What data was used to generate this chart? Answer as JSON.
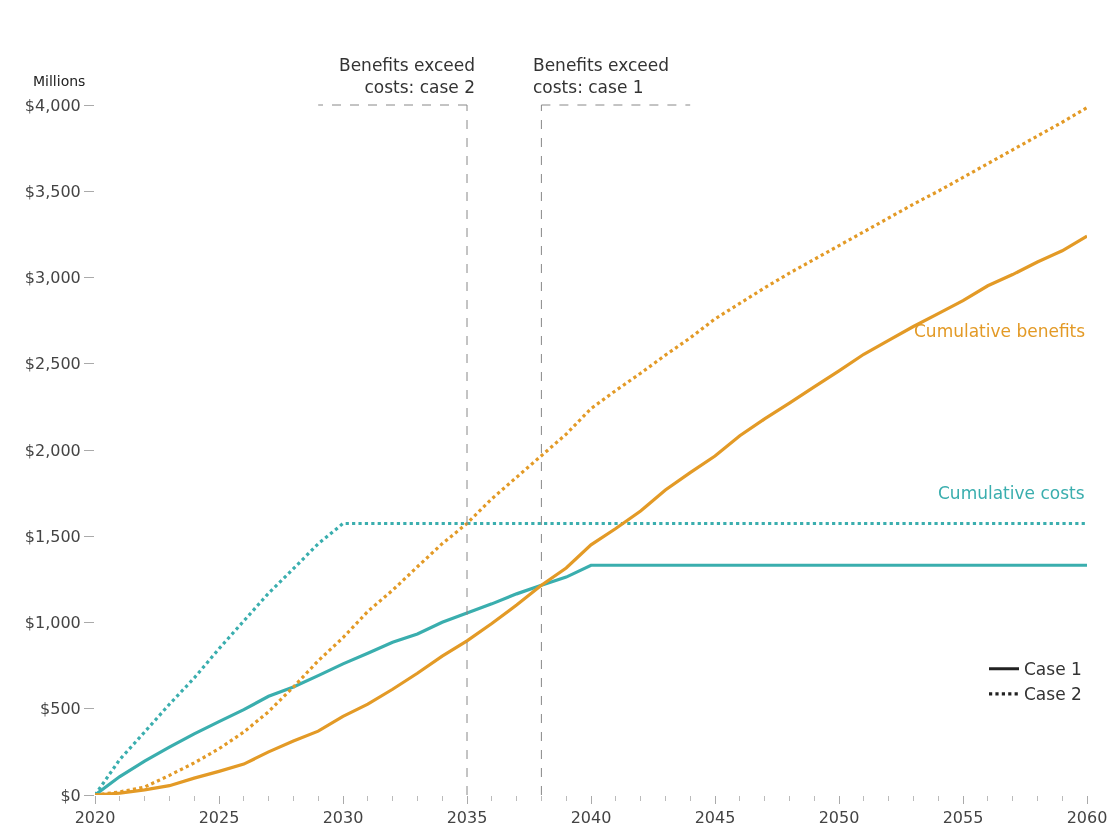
{
  "chart_data": {
    "type": "line",
    "ylabel": "Millions",
    "x": [
      2020,
      2021,
      2022,
      2023,
      2024,
      2025,
      2026,
      2027,
      2028,
      2029,
      2030,
      2031,
      2032,
      2033,
      2034,
      2035,
      2036,
      2037,
      2038,
      2039,
      2040,
      2041,
      2042,
      2043,
      2044,
      2045,
      2046,
      2047,
      2048,
      2049,
      2050,
      2051,
      2052,
      2053,
      2054,
      2055,
      2056,
      2057,
      2058,
      2059,
      2060
    ],
    "series": [
      {
        "color": "#3aaeae",
        "line_style": "solid",
        "values": [
          0,
          107,
          196,
          277,
          354,
          425,
          495,
          572,
          626,
          692,
          760,
          822,
          885,
          933,
          1001,
          1055,
          1108,
          1166,
          1216,
          1263,
          1332,
          1332,
          1332,
          1332,
          1332,
          1332,
          1332,
          1332,
          1332,
          1332,
          1332,
          1332,
          1332,
          1332,
          1332,
          1332,
          1332,
          1332,
          1332,
          1332,
          1332
        ]
      },
      {
        "color": "#3aaeae",
        "line_style": "dotted",
        "values": [
          0,
          206,
          365,
          526,
          678,
          848,
          1009,
          1170,
          1312,
          1456,
          1574,
          1574,
          1574,
          1574,
          1574,
          1574,
          1574,
          1574,
          1574,
          1574,
          1574,
          1574,
          1574,
          1574,
          1574,
          1574,
          1574,
          1574,
          1574,
          1574,
          1574,
          1574,
          1574,
          1574,
          1574,
          1574,
          1574,
          1574,
          1574,
          1574,
          1574
        ]
      },
      {
        "color": "#e39a26",
        "line_style": "solid",
        "values": [
          0,
          11,
          30,
          54,
          98,
          137,
          179,
          250,
          313,
          370,
          456,
          527,
          613,
          706,
          805,
          894,
          994,
          1101,
          1216,
          1316,
          1450,
          1545,
          1646,
          1768,
          1869,
          1965,
          2083,
          2180,
          2272,
          2366,
          2459,
          2555,
          2635,
          2716,
          2791,
          2866,
          2952,
          3017,
          3090,
          3155,
          3240
        ]
      },
      {
        "color": "#e39a26",
        "line_style": "dotted",
        "values": [
          0,
          18,
          46,
          114,
          186,
          268,
          365,
          483,
          626,
          778,
          912,
          1064,
          1187,
          1323,
          1457,
          1574,
          1717,
          1842,
          1967,
          2092,
          2240,
          2345,
          2445,
          2550,
          2650,
          2760,
          2850,
          2940,
          3025,
          3105,
          3185,
          3265,
          3345,
          3425,
          3500,
          3580,
          3660,
          3740,
          3820,
          3900,
          3985
        ]
      },
      {
        "name": "Case 1",
        "color": "#222222",
        "line_style": "solid",
        "values": [
          null,
          null,
          null,
          null,
          null,
          null,
          null,
          null,
          null,
          null,
          null,
          null,
          null,
          null,
          null,
          null,
          null,
          null,
          null,
          null,
          null,
          null,
          null,
          null,
          null,
          null,
          null,
          null,
          null,
          null,
          null,
          null,
          null,
          null,
          null,
          null,
          null,
          null,
          null,
          null,
          null
        ]
      },
      {
        "name": "Case 2",
        "color": "#222222",
        "line_style": "dotted",
        "values": [
          null,
          null,
          null,
          null,
          null,
          null,
          null,
          null,
          null,
          null,
          null,
          null,
          null,
          null,
          null,
          null,
          null,
          null,
          null,
          null,
          null,
          null,
          null,
          null,
          null,
          null,
          null,
          null,
          null,
          null,
          null,
          null,
          null,
          null,
          null,
          null,
          null,
          null,
          null,
          null,
          null
        ]
      }
    ],
    "xlim": [
      2020,
      2060
    ],
    "xticks": [
      2020,
      2025,
      2030,
      2035,
      2040,
      2045,
      2050,
      2055,
      2060
    ],
    "ylim": [
      0,
      4000
    ],
    "yticks": [
      {
        "value": 0,
        "label": "$0"
      },
      {
        "value": 500,
        "label": "$500"
      },
      {
        "value": 1000,
        "label": "$1,000"
      },
      {
        "value": 1500,
        "label": "$1,500"
      },
      {
        "value": 2000,
        "label": "$2,000"
      },
      {
        "value": 2500,
        "label": "$2,500"
      },
      {
        "value": 3000,
        "label": "$3,000"
      },
      {
        "value": 3500,
        "label": "$3,500"
      },
      {
        "value": 4000,
        "label": "$4,000"
      }
    ],
    "ref_lines": [
      {
        "axis": "x",
        "value": 2035,
        "label": "Benefits exceed costs: case 2",
        "color": "#888888",
        "line_style": "dashed"
      },
      {
        "axis": "x",
        "value": 2038,
        "label": "Benefits exceed costs: case 1",
        "color": "#888888",
        "line_style": "dashed"
      }
    ],
    "annotations": [
      "Cumulative benefits",
      "Cumulative costs"
    ],
    "legend": "bottom right",
    "marker": "none"
  }
}
